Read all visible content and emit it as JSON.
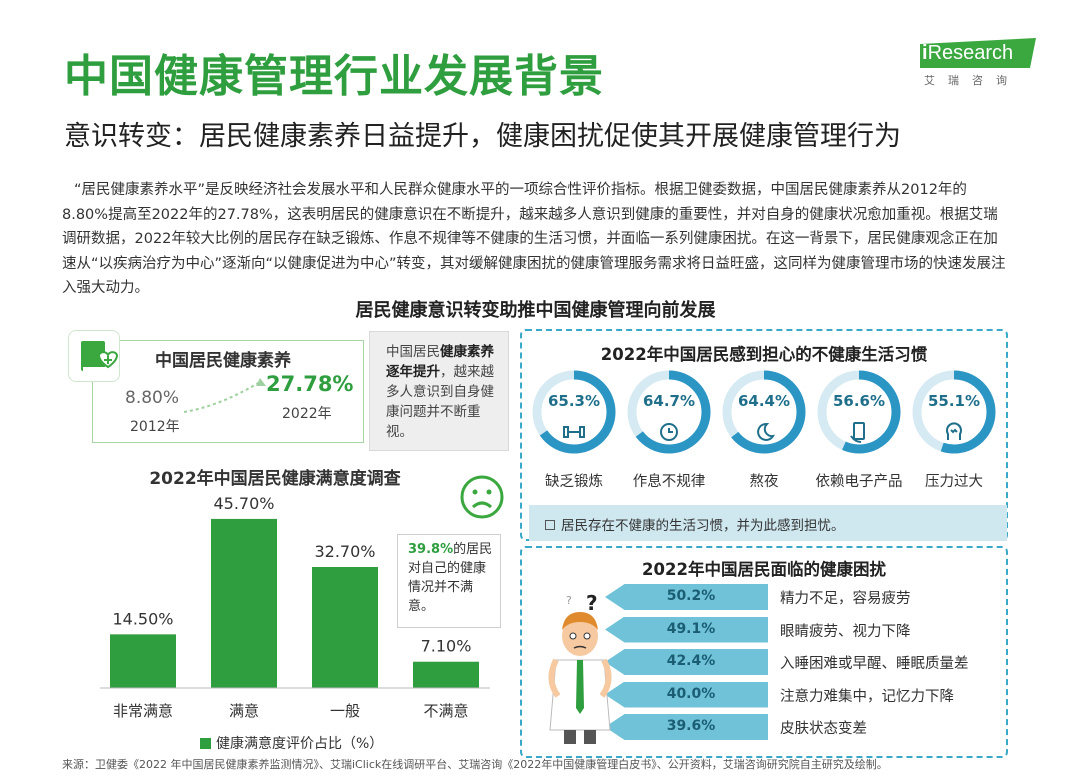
{
  "title": "中国健康管理行业发展背景",
  "subtitle": "意识转变：居民健康素养日益提升，健康困扰促使其开展健康管理行为",
  "logo": {
    "i": "i",
    "word": "Research",
    "cn": "艾瑞咨询"
  },
  "intro": "“居民健康素养水平”是反映经济社会发展水平和人民群众健康水平的一项综合性评价指标。根据卫健委数据，中国居民健康素养从2012年的8.80%提高至2022年的27.78%，这表明居民的健康意识在不断提升，越来越多人意识到健康的重要性，并对自身的健康状况愈加重视。根据艾瑞调研数据，2022年较大比例的居民存在缺乏锻炼、作息不规律等不健康的生活习惯，并面临一系列健康困扰。在这一背景下，居民健康观念正在加速从“以疾病治疗为中心”逐渐向“以健康促进为中心”转变，其对缓解健康困扰的健康管理服务需求将日益旺盛，这同样为健康管理市场的快速发展注入强大动力。",
  "section_title": "居民健康意识转变助推中国健康管理向前发展",
  "literacy": {
    "title": "中国居民健康素养",
    "from_value": "8.80%",
    "from_year": "2012年",
    "to_value": "27.78%",
    "to_year": "2022年",
    "note_pre": "中国居民",
    "note_bold": "健康素养逐年提升",
    "note_post": "，越来越多人意识到自身健康问题并不断重视。"
  },
  "satisfaction_callout": {
    "highlight": "39.8%",
    "text": "的居民对自己的健康情况并不满意。"
  },
  "habits": {
    "title": "2022年中国居民感到担心的不健康生活习惯",
    "note": "居民存在不健康的生活习惯，并为此感到担忧。",
    "items": [
      {
        "value": 65.3,
        "display": "65.3%",
        "label": "缺乏锻炼",
        "icon": "dumbbell-icon"
      },
      {
        "value": 64.7,
        "display": "64.7%",
        "label": "作息不规律",
        "icon": "alarm-clock-icon"
      },
      {
        "value": 64.4,
        "display": "64.4%",
        "label": "熬夜",
        "icon": "moon-stars-icon"
      },
      {
        "value": 56.6,
        "display": "56.6%",
        "label": "依赖电子产品",
        "icon": "phone-hand-icon"
      },
      {
        "value": 55.1,
        "display": "55.1%",
        "label": "压力过大",
        "icon": "stressed-head-icon"
      }
    ],
    "ring_color": "#2b95c4",
    "ring_track": "#d6eaf3"
  },
  "troubles": {
    "title": "2022年中国居民面临的健康困扰",
    "items": [
      {
        "value": 50.2,
        "display": "50.2%",
        "label": "精力不足，容易疲劳"
      },
      {
        "value": 49.1,
        "display": "49.1%",
        "label": "眼睛疲劳、视力下降"
      },
      {
        "value": 42.4,
        "display": "42.4%",
        "label": "入睡困难或早醒、睡眠质量差"
      },
      {
        "value": 40.0,
        "display": "40.0%",
        "label": "注意力难集中，记忆力下降"
      },
      {
        "value": 39.6,
        "display": "39.6%",
        "label": "皮肤状态变差"
      }
    ]
  },
  "chart_data": {
    "type": "bar",
    "title": "2022年中国居民健康满意度调查",
    "categories": [
      "非常满意",
      "满意",
      "一般",
      "不满意"
    ],
    "series": [
      {
        "name": "健康满意度评价占比（%）",
        "values": [
          14.5,
          45.7,
          32.7,
          7.1
        ],
        "labels": [
          "14.50%",
          "45.70%",
          "32.70%",
          "7.10%"
        ]
      }
    ],
    "ylim": [
      0,
      50
    ],
    "legend": "bottom",
    "grid": false,
    "bar_color": "#2f9e3f"
  },
  "source": "来源：卫健委《2022 年中国居民健康素养监测情况》、艾瑞iClick在线调研平台、艾瑞咨询《2022年中国健康管理白皮书》、公开资料，艾瑞咨询研究院自主研究及绘制。"
}
